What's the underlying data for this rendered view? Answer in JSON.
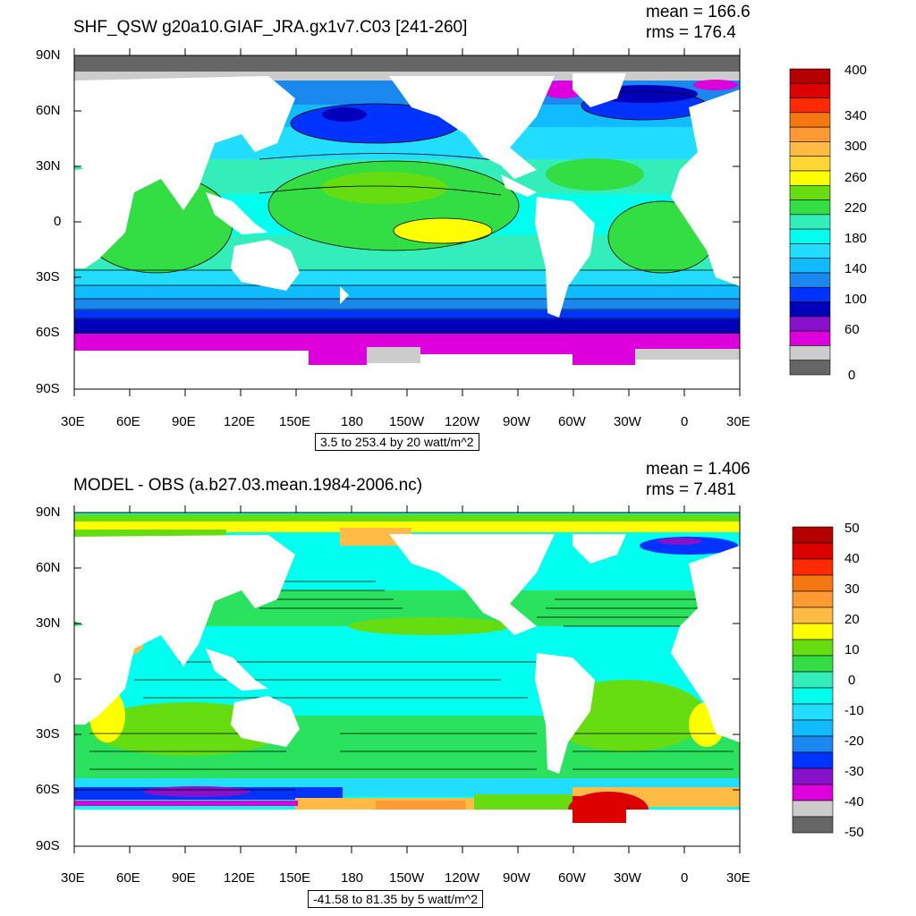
{
  "panels": [
    {
      "title": "SHF_QSW g20a10.GIAF_JRA.gx1v7.C03 [241-260]",
      "mean_label": "mean = 166.6",
      "rms_label": "rms = 176.4",
      "subtitle": "3.5 to 253.4 by 20 watt/m^2",
      "lat_labels": [
        "90N",
        "60N",
        "30N",
        "0",
        "30S",
        "60S",
        "90S"
      ],
      "lon_labels": [
        "30E",
        "60E",
        "90E",
        "120E",
        "150E",
        "180",
        "150W",
        "120W",
        "90W",
        "60W",
        "30W",
        "0",
        "30E"
      ],
      "colorbar": {
        "labels": [
          "400",
          "340",
          "300",
          "260",
          "220",
          "180",
          "140",
          "100",
          "60",
          "0"
        ],
        "colors": [
          "#b30000",
          "#dd0000",
          "#ff2a00",
          "#f4780f",
          "#ff9933",
          "#ffbb44",
          "#ffd633",
          "#ffff00",
          "#66dd11",
          "#33dd44",
          "#33eebb",
          "#00ffee",
          "#22ddff",
          "#11bbff",
          "#1a88ee",
          "#0033ff",
          "#0000bb",
          "#8811cc",
          "#dd00dd",
          "#cccccc",
          "#666666"
        ]
      }
    },
    {
      "title": "MODEL - OBS (a.b27.03.mean.1984-2006.nc)",
      "mean_label": "mean = 1.406",
      "rms_label": "rms = 7.481",
      "subtitle": "-41.58 to 81.35 by 5 watt/m^2",
      "lat_labels": [
        "90N",
        "60N",
        "30N",
        "0",
        "30S",
        "60S",
        "90S"
      ],
      "lon_labels": [
        "30E",
        "60E",
        "90E",
        "120E",
        "150E",
        "180",
        "150W",
        "120W",
        "90W",
        "60W",
        "30W",
        "0",
        "30E"
      ],
      "colorbar": {
        "labels": [
          "50",
          "40",
          "30",
          "20",
          "10",
          "0",
          "-10",
          "-20",
          "-30",
          "-40",
          "-50"
        ],
        "colors": [
          "#b30000",
          "#dd0000",
          "#ff2a00",
          "#f4780f",
          "#ff9933",
          "#ffbb44",
          "#ffff00",
          "#66dd11",
          "#33dd44",
          "#33eebb",
          "#00ffee",
          "#22ddff",
          "#11bbff",
          "#1a88ee",
          "#0033ff",
          "#8811cc",
          "#dd00dd",
          "#cccccc",
          "#666666"
        ]
      }
    }
  ]
}
